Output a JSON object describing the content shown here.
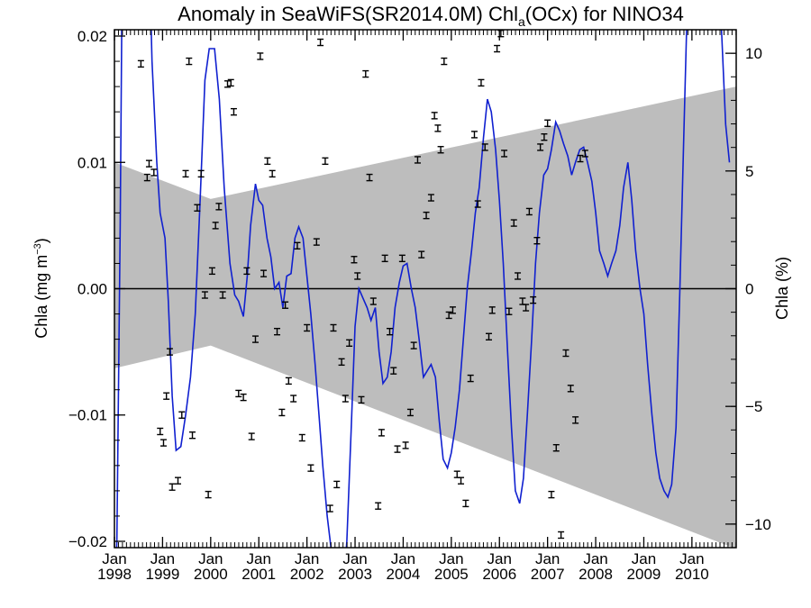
{
  "chart_data": {
    "type": "line",
    "title_main": "Anomaly in SeaWiFS(SR2014.0M) Chl",
    "title_sub": "a",
    "title_tail": "(OCx) for NINO34",
    "ylabel_left": "Chla (mg m",
    "ylabel_left_sup": "−3",
    "ylabel_left_close": ")",
    "ylabel_right": "Chla (%)",
    "xlim": [
      1998.0,
      2010.92
    ],
    "ylim_left": [
      -0.0205,
      0.0205
    ],
    "ylim_right": [
      -11,
      11
    ],
    "left_ticks": [
      {
        "v": 0.02,
        "label": "0.02"
      },
      {
        "v": 0.01,
        "label": "0.01"
      },
      {
        "v": 0.0,
        "label": "0.00"
      },
      {
        "v": -0.01,
        "label": "−0.01"
      },
      {
        "v": -0.02,
        "label": "−0.02"
      }
    ],
    "right_ticks": [
      {
        "v": 10,
        "label": "10"
      },
      {
        "v": 5,
        "label": "5"
      },
      {
        "v": 0,
        "label": "0"
      },
      {
        "v": -5,
        "label": "−5"
      },
      {
        "v": -10,
        "label": "−10"
      }
    ],
    "x_ticks": [
      {
        "v": 1998,
        "month": "Jan",
        "year": "1998"
      },
      {
        "v": 1999,
        "month": "Jan",
        "year": "1999"
      },
      {
        "v": 2000,
        "month": "Jan",
        "year": "2000"
      },
      {
        "v": 2001,
        "month": "Jan",
        "year": "2001"
      },
      {
        "v": 2002,
        "month": "Jan",
        "year": "2002"
      },
      {
        "v": 2003,
        "month": "Jan",
        "year": "2003"
      },
      {
        "v": 2004,
        "month": "Jan",
        "year": "2004"
      },
      {
        "v": 2005,
        "month": "Jan",
        "year": "2005"
      },
      {
        "v": 2006,
        "month": "Jan",
        "year": "2006"
      },
      {
        "v": 2007,
        "month": "Jan",
        "year": "2007"
      },
      {
        "v": 2008,
        "month": "Jan",
        "year": "2008"
      },
      {
        "v": 2009,
        "month": "Jan",
        "year": "2009"
      },
      {
        "v": 2010,
        "month": "Jan",
        "year": "2010"
      }
    ],
    "trend_band": {
      "start_x": 1998.0,
      "mid_x": 2000.0,
      "end_x": 2010.92,
      "upper": [
        0.01,
        0.0071,
        0.016
      ],
      "lower": [
        -0.0063,
        -0.0045,
        -0.0206
      ]
    },
    "line_series": {
      "color": "#1020d0",
      "points": [
        [
          1998.0,
          -0.025
        ],
        [
          1998.05,
          -0.02
        ],
        [
          1998.12,
          0.005
        ],
        [
          1998.17,
          0.03
        ],
        [
          1998.7,
          0.03
        ],
        [
          1998.78,
          0.018
        ],
        [
          1998.88,
          0.01
        ],
        [
          1998.95,
          0.006
        ],
        [
          1999.05,
          0.004
        ],
        [
          1999.12,
          -0.001
        ],
        [
          1999.2,
          -0.0085
        ],
        [
          1999.28,
          -0.0128
        ],
        [
          1999.38,
          -0.0125
        ],
        [
          1999.48,
          -0.01
        ],
        [
          1999.58,
          -0.007
        ],
        [
          1999.68,
          -0.002
        ],
        [
          1999.78,
          0.007
        ],
        [
          1999.88,
          0.0165
        ],
        [
          1999.97,
          0.019
        ],
        [
          2000.08,
          0.019
        ],
        [
          2000.18,
          0.015
        ],
        [
          2000.28,
          0.008
        ],
        [
          2000.4,
          0.002
        ],
        [
          2000.5,
          -0.0005
        ],
        [
          2000.58,
          -0.001
        ],
        [
          2000.68,
          -0.0022
        ],
        [
          2000.76,
          0.001
        ],
        [
          2000.83,
          0.005
        ],
        [
          2000.93,
          0.0083
        ],
        [
          2001.0,
          0.007
        ],
        [
          2001.08,
          0.0066
        ],
        [
          2001.17,
          0.004
        ],
        [
          2001.25,
          0.0025
        ],
        [
          2001.33,
          0.0
        ],
        [
          2001.42,
          0.0005
        ],
        [
          2001.5,
          -0.0015
        ],
        [
          2001.58,
          0.001
        ],
        [
          2001.67,
          0.0012
        ],
        [
          2001.75,
          0.004
        ],
        [
          2001.83,
          0.0049
        ],
        [
          2001.92,
          0.004
        ],
        [
          2002.0,
          0.001
        ],
        [
          2002.08,
          -0.002
        ],
        [
          2002.17,
          -0.006
        ],
        [
          2002.25,
          -0.01
        ],
        [
          2002.33,
          -0.014
        ],
        [
          2002.42,
          -0.018
        ],
        [
          2002.5,
          -0.0205
        ],
        [
          2002.58,
          -0.0215
        ],
        [
          2002.67,
          -0.023
        ],
        [
          2002.75,
          -0.024
        ],
        [
          2002.83,
          -0.02
        ],
        [
          2002.92,
          -0.011
        ],
        [
          2003.0,
          -0.003
        ],
        [
          2003.08,
          0.0
        ],
        [
          2003.17,
          -0.0008
        ],
        [
          2003.25,
          -0.0015
        ],
        [
          2003.33,
          -0.0025
        ],
        [
          2003.42,
          -0.0015
        ],
        [
          2003.5,
          -0.005
        ],
        [
          2003.58,
          -0.0075
        ],
        [
          2003.67,
          -0.007
        ],
        [
          2003.75,
          -0.005
        ],
        [
          2003.83,
          -0.0015
        ],
        [
          2003.92,
          0.0005
        ],
        [
          2004.0,
          0.0018
        ],
        [
          2004.08,
          0.002
        ],
        [
          2004.17,
          0.0
        ],
        [
          2004.25,
          -0.0015
        ],
        [
          2004.33,
          -0.004
        ],
        [
          2004.42,
          -0.007
        ],
        [
          2004.5,
          -0.0065
        ],
        [
          2004.58,
          -0.006
        ],
        [
          2004.67,
          -0.007
        ],
        [
          2004.75,
          -0.0105
        ],
        [
          2004.83,
          -0.0135
        ],
        [
          2004.92,
          -0.0142
        ],
        [
          2005.0,
          -0.013
        ],
        [
          2005.08,
          -0.011
        ],
        [
          2005.17,
          -0.008
        ],
        [
          2005.25,
          -0.004
        ],
        [
          2005.33,
          0.0
        ],
        [
          2005.42,
          0.003
        ],
        [
          2005.5,
          0.006
        ],
        [
          2005.58,
          0.008
        ],
        [
          2005.67,
          0.012
        ],
        [
          2005.75,
          0.015
        ],
        [
          2005.83,
          0.014
        ],
        [
          2005.92,
          0.011
        ],
        [
          2006.0,
          0.007
        ],
        [
          2006.08,
          0.002
        ],
        [
          2006.17,
          -0.005
        ],
        [
          2006.25,
          -0.011
        ],
        [
          2006.33,
          -0.016
        ],
        [
          2006.42,
          -0.017
        ],
        [
          2006.5,
          -0.015
        ],
        [
          2006.58,
          -0.01
        ],
        [
          2006.67,
          -0.004
        ],
        [
          2006.75,
          0.002
        ],
        [
          2006.83,
          0.006
        ],
        [
          2006.92,
          0.009
        ],
        [
          2007.0,
          0.0095
        ],
        [
          2007.08,
          0.011
        ],
        [
          2007.17,
          0.0132
        ],
        [
          2007.25,
          0.0125
        ],
        [
          2007.33,
          0.0115
        ],
        [
          2007.42,
          0.0105
        ],
        [
          2007.5,
          0.009
        ],
        [
          2007.58,
          0.01
        ],
        [
          2007.67,
          0.011
        ],
        [
          2007.75,
          0.0112
        ],
        [
          2007.83,
          0.01
        ],
        [
          2007.92,
          0.0085
        ],
        [
          2008.0,
          0.006
        ],
        [
          2008.08,
          0.003
        ],
        [
          2008.17,
          0.002
        ],
        [
          2008.25,
          0.001
        ],
        [
          2008.33,
          0.002
        ],
        [
          2008.42,
          0.003
        ],
        [
          2008.5,
          0.005
        ],
        [
          2008.58,
          0.008
        ],
        [
          2008.67,
          0.01
        ],
        [
          2008.75,
          0.007
        ],
        [
          2008.83,
          0.003
        ],
        [
          2008.92,
          0.0
        ],
        [
          2009.0,
          -0.002
        ],
        [
          2009.08,
          -0.006
        ],
        [
          2009.17,
          -0.01
        ],
        [
          2009.25,
          -0.013
        ],
        [
          2009.33,
          -0.015
        ],
        [
          2009.42,
          -0.016
        ],
        [
          2009.5,
          -0.0165
        ],
        [
          2009.58,
          -0.0155
        ],
        [
          2009.67,
          -0.011
        ],
        [
          2009.75,
          0.0
        ],
        [
          2009.83,
          0.012
        ],
        [
          2009.92,
          0.025
        ],
        [
          2010.05,
          0.03
        ],
        [
          2010.5,
          0.03
        ],
        [
          2010.62,
          0.02
        ],
        [
          2010.7,
          0.013
        ],
        [
          2010.78,
          0.01
        ]
      ]
    },
    "errbar_series": {
      "color": "#000000",
      "half_height": 0.00025,
      "points": [
        [
          1998.55,
          0.0178
        ],
        [
          1998.68,
          0.0088
        ],
        [
          1998.72,
          0.0099
        ],
        [
          1998.82,
          0.0092
        ],
        [
          1998.95,
          -0.0113
        ],
        [
          1999.02,
          -0.0122
        ],
        [
          1999.08,
          -0.0085
        ],
        [
          1999.15,
          -0.005
        ],
        [
          1999.2,
          -0.0157
        ],
        [
          1999.32,
          -0.0152
        ],
        [
          1999.4,
          -0.01
        ],
        [
          1999.48,
          0.0091
        ],
        [
          1999.55,
          0.018
        ],
        [
          1999.62,
          -0.0116
        ],
        [
          1999.72,
          0.0064
        ],
        [
          1999.8,
          0.0091
        ],
        [
          1999.88,
          -0.0005
        ],
        [
          1999.95,
          -0.0163
        ],
        [
          2000.03,
          0.0014
        ],
        [
          2000.1,
          0.005
        ],
        [
          2000.17,
          0.0065
        ],
        [
          2000.25,
          -0.0005
        ],
        [
          2000.35,
          0.0162
        ],
        [
          2000.42,
          0.0163
        ],
        [
          2000.48,
          0.014
        ],
        [
          2000.58,
          -0.0083
        ],
        [
          2000.68,
          -0.0086
        ],
        [
          2000.75,
          0.0014
        ],
        [
          2000.85,
          -0.0117
        ],
        [
          2000.93,
          -0.004
        ],
        [
          2001.03,
          0.0184
        ],
        [
          2001.1,
          0.0012
        ],
        [
          2001.18,
          0.0101
        ],
        [
          2001.28,
          0.0091
        ],
        [
          2001.38,
          -0.0034
        ],
        [
          2001.48,
          -0.0098
        ],
        [
          2001.55,
          -0.0013
        ],
        [
          2001.62,
          -0.0073
        ],
        [
          2001.72,
          -0.0087
        ],
        [
          2001.8,
          0.0034
        ],
        [
          2001.9,
          -0.0118
        ],
        [
          2002.0,
          -0.0031
        ],
        [
          2002.08,
          -0.0142
        ],
        [
          2002.2,
          0.0037
        ],
        [
          2002.28,
          0.0195
        ],
        [
          2002.38,
          0.0101
        ],
        [
          2002.48,
          -0.0174
        ],
        [
          2002.55,
          -0.0031
        ],
        [
          2002.62,
          -0.0155
        ],
        [
          2002.72,
          -0.0058
        ],
        [
          2002.8,
          -0.0087
        ],
        [
          2002.88,
          -0.0043
        ],
        [
          2002.98,
          0.0023
        ],
        [
          2003.05,
          0.001
        ],
        [
          2003.13,
          -0.0088
        ],
        [
          2003.22,
          0.017
        ],
        [
          2003.3,
          0.0088
        ],
        [
          2003.38,
          -0.001
        ],
        [
          2003.48,
          -0.0172
        ],
        [
          2003.55,
          -0.0114
        ],
        [
          2003.62,
          0.0024
        ],
        [
          2003.72,
          -0.0034
        ],
        [
          2003.8,
          -0.0065
        ],
        [
          2003.88,
          -0.0127
        ],
        [
          2003.98,
          0.0024
        ],
        [
          2004.05,
          -0.0124
        ],
        [
          2004.15,
          -0.0098
        ],
        [
          2004.22,
          -0.0045
        ],
        [
          2004.3,
          0.0102
        ],
        [
          2004.38,
          0.0027
        ],
        [
          2004.48,
          0.0058
        ],
        [
          2004.58,
          0.0072
        ],
        [
          2004.65,
          0.0137
        ],
        [
          2004.72,
          0.0127
        ],
        [
          2004.78,
          0.011
        ],
        [
          2004.85,
          0.018
        ],
        [
          2004.95,
          -0.0021
        ],
        [
          2005.03,
          -0.0017
        ],
        [
          2005.12,
          -0.0147
        ],
        [
          2005.2,
          -0.0152
        ],
        [
          2005.3,
          -0.017
        ],
        [
          2005.4,
          -0.0071
        ],
        [
          2005.48,
          0.0122
        ],
        [
          2005.55,
          0.0067
        ],
        [
          2005.62,
          0.0163
        ],
        [
          2005.7,
          0.0112
        ],
        [
          2005.78,
          -0.0038
        ],
        [
          2005.85,
          -0.0017
        ],
        [
          2005.95,
          0.019
        ],
        [
          2006.03,
          0.0202
        ],
        [
          2006.1,
          0.0107
        ],
        [
          2006.2,
          -0.0018
        ],
        [
          2006.3,
          0.0052
        ],
        [
          2006.38,
          0.001
        ],
        [
          2006.48,
          -0.001
        ],
        [
          2006.55,
          -0.0015
        ],
        [
          2006.62,
          0.0061
        ],
        [
          2006.7,
          -0.0009
        ],
        [
          2006.78,
          0.0038
        ],
        [
          2006.85,
          0.0112
        ],
        [
          2006.93,
          0.012
        ],
        [
          2007.0,
          0.0131
        ],
        [
          2007.08,
          -0.0163
        ],
        [
          2007.18,
          -0.0126
        ],
        [
          2007.28,
          -0.0195
        ],
        [
          2007.38,
          -0.0051
        ],
        [
          2007.48,
          -0.0079
        ],
        [
          2007.58,
          -0.0104
        ],
        [
          2007.68,
          0.0103
        ],
        [
          2007.78,
          0.0107
        ]
      ]
    }
  }
}
